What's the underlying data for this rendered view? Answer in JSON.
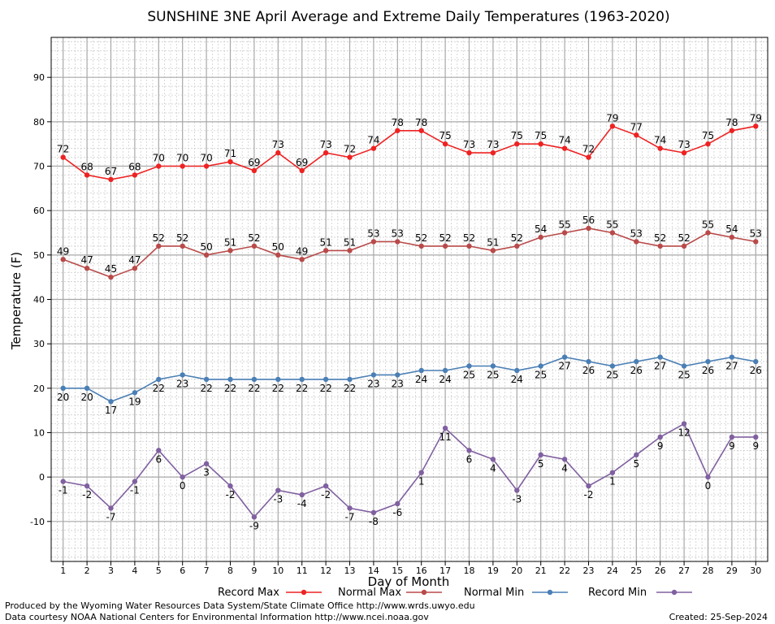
{
  "chart_data": {
    "type": "line",
    "title": "SUNSHINE 3NE April Average and Extreme Daily Temperatures (1963-2020)",
    "xlabel": "Day of Month",
    "ylabel": "Temperature (F)",
    "xlim": [
      0.5,
      30.5
    ],
    "ylim": [
      -19,
      99
    ],
    "yticks": [
      -10,
      0,
      10,
      20,
      30,
      40,
      50,
      60,
      70,
      80,
      90
    ],
    "x": [
      1,
      2,
      3,
      4,
      5,
      6,
      7,
      8,
      9,
      10,
      11,
      12,
      13,
      14,
      15,
      16,
      17,
      18,
      19,
      20,
      21,
      22,
      23,
      24,
      25,
      26,
      27,
      28,
      29,
      30
    ],
    "grid": true,
    "legend_position": "bottom",
    "series": [
      {
        "name": "Record Max",
        "color": "#ee2222",
        "label_pos": "above",
        "values": [
          72,
          68,
          67,
          68,
          70,
          70,
          70,
          71,
          69,
          73,
          69,
          73,
          72,
          74,
          78,
          78,
          75,
          73,
          73,
          75,
          75,
          74,
          72,
          79,
          77,
          74,
          73,
          75,
          78,
          79
        ]
      },
      {
        "name": "Normal Max",
        "color": "#b94a4a",
        "label_pos": "above",
        "values": [
          49,
          47,
          45,
          47,
          52,
          52,
          50,
          51,
          52,
          50,
          49,
          51,
          51,
          53,
          53,
          52,
          52,
          52,
          51,
          52,
          54,
          55,
          56,
          55,
          53,
          52,
          52,
          55,
          54,
          53
        ]
      },
      {
        "name": "Normal Min",
        "color": "#4a7fb5",
        "label_pos": "below",
        "values": [
          20,
          20,
          17,
          19,
          22,
          23,
          22,
          22,
          22,
          22,
          22,
          22,
          22,
          23,
          23,
          24,
          24,
          25,
          25,
          24,
          25,
          27,
          26,
          25,
          26,
          27,
          25,
          26,
          27,
          26
        ]
      },
      {
        "name": "Record Min",
        "color": "#8060a0",
        "label_pos": "below",
        "values": [
          -1,
          -2,
          -7,
          -1,
          6,
          0,
          3,
          -2,
          -9,
          -3,
          -4,
          -2,
          -7,
          -8,
          -6,
          1,
          11,
          6,
          4,
          -3,
          5,
          4,
          -2,
          1,
          5,
          9,
          12,
          0,
          9,
          9
        ]
      }
    ]
  },
  "footer": {
    "line1": "Produced by the Wyoming Water Resources Data System/State Climate Office http://www.wrds.uwyo.edu",
    "line2": "Data courtesy NOAA National Centers for Environmental Information http://www.ncei.noaa.gov",
    "created": "Created:  25-Sep-2024"
  }
}
